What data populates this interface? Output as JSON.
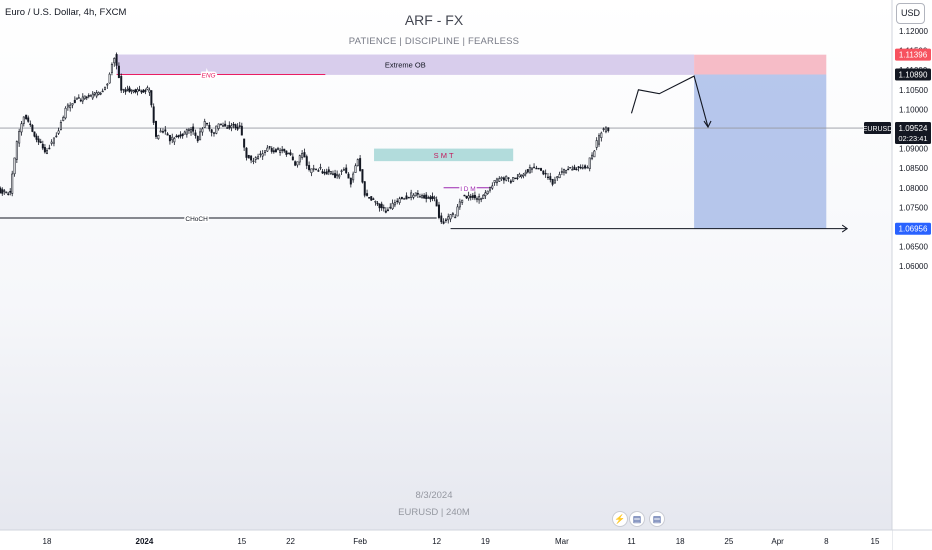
{
  "header": {
    "symbol_title": "Euro / U.S. Dollar, 4h, FXCM",
    "brand": "ARF - FX",
    "tagline": "PATIENCE  |  DISCIPLINE  |  FEARLESS",
    "currency_button": "USD"
  },
  "watermark": {
    "date": "8/3/2024",
    "symbol_interval": "EURUSD | 240M"
  },
  "events": [
    {
      "icon": "lightning-icon",
      "symbol": "⚡"
    },
    {
      "icon": "us-flag-icon",
      "symbol": "▤"
    },
    {
      "icon": "us-flag-icon",
      "symbol": "▤"
    }
  ],
  "chart_data": {
    "type": "candlestick",
    "title": "",
    "xlabel": "",
    "ylabel": "",
    "ylim": [
      1.0565,
      1.1225
    ],
    "price_ticks": [
      1.12,
      1.115,
      1.11,
      1.105,
      1.1,
      1.095,
      1.09,
      1.085,
      1.08,
      1.075,
      1.07,
      1.065,
      1.06
    ],
    "price_tick_labels": [
      "1.12000",
      "1.11500",
      "1.11000",
      "1.10500",
      "1.10000",
      "1.09500",
      "1.09000",
      "1.08500",
      "1.08000",
      "1.07500",
      "1.07000",
      "1.06500",
      "1.06000"
    ],
    "time_ticks": [
      {
        "label": "18",
        "date": "2023-12-18",
        "bold": false
      },
      {
        "label": "2024",
        "date": "2024-01-01",
        "bold": true
      },
      {
        "label": "15",
        "date": "2024-01-15",
        "bold": false
      },
      {
        "label": "22",
        "date": "2024-01-22",
        "bold": false
      },
      {
        "label": "Feb",
        "date": "2024-02-01",
        "bold": false
      },
      {
        "label": "12",
        "date": "2024-02-12",
        "bold": false
      },
      {
        "label": "19",
        "date": "2024-02-19",
        "bold": false
      },
      {
        "label": "Mar",
        "date": "2024-03-01",
        "bold": false
      },
      {
        "label": "11",
        "date": "2024-03-11",
        "bold": false
      },
      {
        "label": "18",
        "date": "2024-03-18",
        "bold": false
      },
      {
        "label": "25",
        "date": "2024-03-25",
        "bold": false
      },
      {
        "label": "Apr",
        "date": "2024-04-01",
        "bold": false
      },
      {
        "label": "8",
        "date": "2024-04-08",
        "bold": false
      },
      {
        "label": "15",
        "date": "2024-04-15",
        "bold": false
      }
    ],
    "price_path": [
      [
        "2023-12-05",
        1.0745
      ],
      [
        "2023-12-08",
        1.077
      ],
      [
        "2023-12-11",
        1.0795
      ],
      [
        "2023-12-13",
        1.0785
      ],
      [
        "2023-12-14",
        1.092
      ],
      [
        "2023-12-15",
        1.0985
      ],
      [
        "2023-12-18",
        1.089
      ],
      [
        "2023-12-19",
        1.0915
      ],
      [
        "2023-12-20",
        1.095
      ],
      [
        "2023-12-21",
        1.1
      ],
      [
        "2023-12-22",
        1.102
      ],
      [
        "2023-12-26",
        1.104
      ],
      [
        "2023-12-27",
        1.107
      ],
      [
        "2023-12-28",
        1.1135
      ],
      [
        "2023-12-29",
        1.105
      ],
      [
        "2024-01-02",
        1.105
      ],
      [
        "2024-01-03",
        1.093
      ],
      [
        "2024-01-04",
        1.095
      ],
      [
        "2024-01-05",
        1.092
      ],
      [
        "2024-01-08",
        1.095
      ],
      [
        "2024-01-09",
        1.092
      ],
      [
        "2024-01-10",
        1.097
      ],
      [
        "2024-01-11",
        1.0935
      ],
      [
        "2024-01-12",
        1.096
      ],
      [
        "2024-01-15",
        1.0955
      ],
      [
        "2024-01-16",
        1.088
      ],
      [
        "2024-01-17",
        1.087
      ],
      [
        "2024-01-18",
        1.0885
      ],
      [
        "2024-01-19",
        1.09
      ],
      [
        "2024-01-22",
        1.089
      ],
      [
        "2024-01-23",
        1.0855
      ],
      [
        "2024-01-24",
        1.089
      ],
      [
        "2024-01-25",
        1.084
      ],
      [
        "2024-01-26",
        1.085
      ],
      [
        "2024-01-29",
        1.083
      ],
      [
        "2024-01-30",
        1.0845
      ],
      [
        "2024-01-31",
        1.0815
      ],
      [
        "2024-02-01",
        1.087
      ],
      [
        "2024-02-02",
        1.0785
      ],
      [
        "2024-02-05",
        1.074
      ],
      [
        "2024-02-06",
        1.0755
      ],
      [
        "2024-02-07",
        1.077
      ],
      [
        "2024-02-08",
        1.0775
      ],
      [
        "2024-02-09",
        1.0785
      ],
      [
        "2024-02-12",
        1.077
      ],
      [
        "2024-02-13",
        1.071
      ],
      [
        "2024-02-14",
        1.0725
      ],
      [
        "2024-02-15",
        1.073
      ],
      [
        "2024-02-16",
        1.0775
      ],
      [
        "2024-02-19",
        1.0775
      ],
      [
        "2024-02-20",
        1.0805
      ],
      [
        "2024-02-21",
        1.082
      ],
      [
        "2024-02-22",
        1.0825
      ],
      [
        "2024-02-23",
        1.082
      ],
      [
        "2024-02-26",
        1.085
      ],
      [
        "2024-02-27",
        1.0845
      ],
      [
        "2024-02-28",
        1.083
      ],
      [
        "2024-02-29",
        1.081
      ],
      [
        "2024-03-01",
        1.084
      ],
      [
        "2024-03-04",
        1.0855
      ],
      [
        "2024-03-05",
        1.0855
      ],
      [
        "2024-03-06",
        1.09
      ],
      [
        "2024-03-07",
        1.0945
      ],
      [
        "2024-03-08",
        1.095
      ]
    ],
    "current_price": {
      "symbol": "EURUSD",
      "value": "1.09524",
      "countdown": "02:23:41"
    },
    "price_labels": [
      {
        "value": "1.11396",
        "style": "red"
      },
      {
        "value": "1.10890",
        "style": "black"
      },
      {
        "value": "1.06956",
        "style": "blue"
      }
    ],
    "zones": [
      {
        "label": "Extreme OB",
        "from": "2023-12-28",
        "to": "2024-03-20",
        "top": 1.114,
        "bottom": 1.1088,
        "color": "#d1c4e9"
      },
      {
        "label": "S M T",
        "from": "2024-02-03",
        "to": "2024-02-23",
        "top": 1.09,
        "bottom": 1.0868,
        "color": "#a5d6d6"
      }
    ],
    "short_position": {
      "entry": 1.1089,
      "stop": 1.11396,
      "target": 1.06956,
      "from": "2024-03-20",
      "to": "2024-04-08"
    },
    "structure_lines": [
      {
        "label": "ENG",
        "from": "2023-12-28",
        "to": "2024-01-27",
        "price": 1.1089,
        "color": "#e91e63"
      },
      {
        "label": "CHoCH",
        "from": "2023-12-05",
        "to": "2024-02-12",
        "price": 1.0723,
        "color": "#131722"
      },
      {
        "label": "I D M",
        "from": "2024-02-13",
        "to": "2024-02-20",
        "price": 1.08,
        "color": "#9c27b0"
      },
      {
        "label": "",
        "from": "2024-02-14",
        "to": "2024-04-11",
        "price": 1.0696,
        "color": "#131722"
      }
    ],
    "projection_path": [
      [
        "2024-03-11",
        1.099
      ],
      [
        "2024-03-12",
        1.105
      ],
      [
        "2024-03-15",
        1.104
      ],
      [
        "2024-03-20",
        1.1085
      ],
      [
        "2024-03-22",
        1.0955
      ]
    ],
    "current_price_line": 1.09524
  }
}
